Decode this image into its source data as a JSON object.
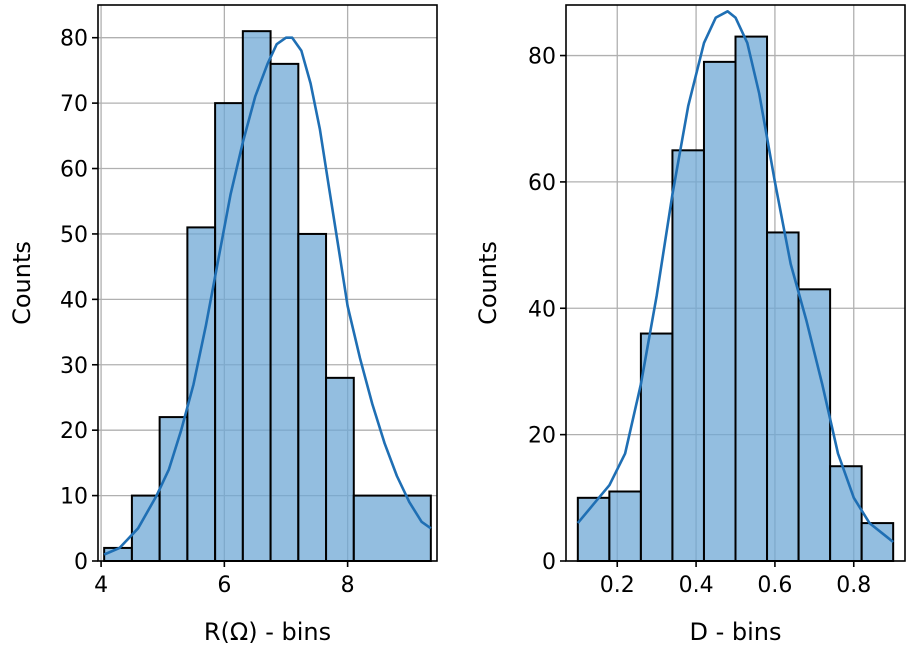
{
  "chart_data": [
    {
      "type": "bar",
      "subtype": "histogram",
      "xlabel": "R(Ω) - bins",
      "ylabel": "Counts",
      "xlim": [
        3.95,
        9.45
      ],
      "ylim": [
        0,
        85
      ],
      "xticks": [
        4,
        6,
        8
      ],
      "yticks": [
        0,
        10,
        20,
        30,
        40,
        50,
        60,
        70,
        80
      ],
      "grid": true,
      "color": "#6fa8d6",
      "kde_color": "#1f6fb4",
      "bins": [
        {
          "x0": 4.05,
          "x1": 4.5,
          "count": 2
        },
        {
          "x0": 4.5,
          "x1": 4.95,
          "count": 10
        },
        {
          "x0": 4.95,
          "x1": 5.4,
          "count": 22
        },
        {
          "x0": 5.4,
          "x1": 5.85,
          "count": 51
        },
        {
          "x0": 5.85,
          "x1": 6.3,
          "count": 70
        },
        {
          "x0": 6.3,
          "x1": 6.75,
          "count": 81
        },
        {
          "x0": 6.75,
          "x1": 7.2,
          "count": 76
        },
        {
          "x0": 7.2,
          "x1": 7.65,
          "count": 50
        },
        {
          "x0": 7.65,
          "x1": 8.1,
          "count": 28
        },
        {
          "x0": 8.1,
          "x1": 9.35,
          "count": 10
        }
      ],
      "kde": {
        "x": [
          4.05,
          4.3,
          4.6,
          4.9,
          5.1,
          5.3,
          5.5,
          5.7,
          5.9,
          6.1,
          6.3,
          6.5,
          6.7,
          6.85,
          7.0,
          7.1,
          7.25,
          7.4,
          7.55,
          7.7,
          7.85,
          8.0,
          8.2,
          8.4,
          8.6,
          8.8,
          9.0,
          9.2,
          9.35
        ],
        "y": [
          1,
          2,
          5,
          10,
          14,
          20,
          27,
          36,
          46,
          56,
          64,
          71,
          76,
          79,
          80,
          80,
          78,
          73,
          66,
          57,
          48,
          39,
          31,
          24,
          18,
          13,
          9,
          6,
          5
        ]
      }
    },
    {
      "type": "bar",
      "subtype": "histogram",
      "xlabel": "D - bins",
      "ylabel": "Counts",
      "xlim": [
        0.07,
        0.93
      ],
      "ylim": [
        0,
        88
      ],
      "xticks": [
        0.2,
        0.4,
        0.6,
        0.8
      ],
      "yticks": [
        0,
        20,
        40,
        60,
        80
      ],
      "grid": true,
      "color": "#6fa8d6",
      "kde_color": "#1f6fb4",
      "bins": [
        {
          "x0": 0.1,
          "x1": 0.18,
          "count": 10
        },
        {
          "x0": 0.18,
          "x1": 0.26,
          "count": 11
        },
        {
          "x0": 0.26,
          "x1": 0.34,
          "count": 36
        },
        {
          "x0": 0.34,
          "x1": 0.42,
          "count": 65
        },
        {
          "x0": 0.42,
          "x1": 0.5,
          "count": 79
        },
        {
          "x0": 0.5,
          "x1": 0.58,
          "count": 83
        },
        {
          "x0": 0.58,
          "x1": 0.66,
          "count": 52
        },
        {
          "x0": 0.66,
          "x1": 0.74,
          "count": 43
        },
        {
          "x0": 0.74,
          "x1": 0.82,
          "count": 15
        },
        {
          "x0": 0.82,
          "x1": 0.9,
          "count": 6
        }
      ],
      "kde": {
        "x": [
          0.1,
          0.14,
          0.18,
          0.22,
          0.26,
          0.3,
          0.34,
          0.38,
          0.42,
          0.45,
          0.48,
          0.5,
          0.53,
          0.56,
          0.6,
          0.64,
          0.68,
          0.72,
          0.76,
          0.8,
          0.84,
          0.88,
          0.9
        ],
        "y": [
          6,
          9,
          12,
          17,
          28,
          42,
          58,
          72,
          82,
          86,
          87,
          86,
          82,
          74,
          60,
          47,
          38,
          28,
          17,
          10,
          6,
          4,
          3
        ]
      }
    }
  ]
}
